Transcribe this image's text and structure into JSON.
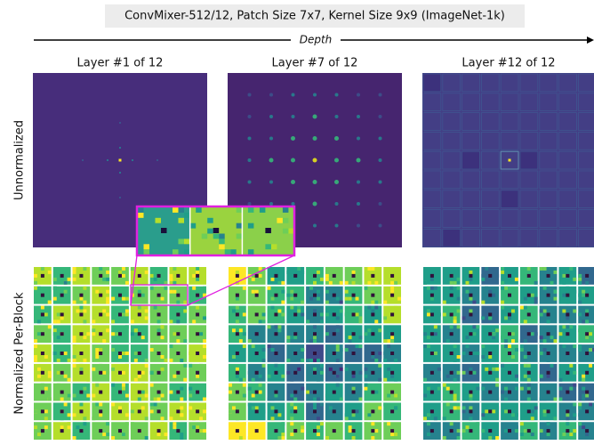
{
  "header": {
    "title": "ConvMixer-512/12, Patch Size 7x7, Kernel Size 9x9 (ImageNet-1k)",
    "axis_label": "Depth"
  },
  "columns": [
    {
      "label": "Layer #1 of 12"
    },
    {
      "label": "Layer #7 of 12"
    },
    {
      "label": "Layer #12 of 12"
    }
  ],
  "rows": [
    {
      "label": "Unnormalized"
    },
    {
      "label": "Normalized Per-Block"
    }
  ]
}
